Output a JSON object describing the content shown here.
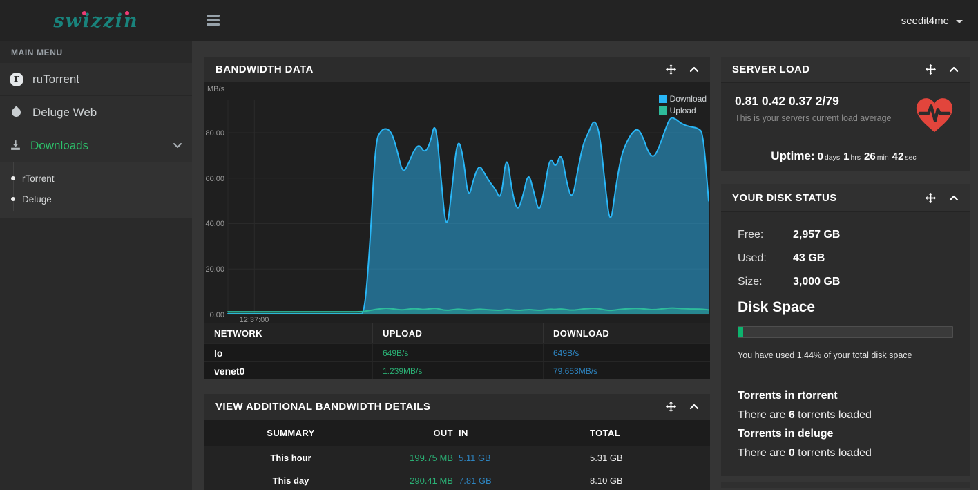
{
  "topbar": {
    "logo": "swizzin",
    "user": "seedit4me"
  },
  "sidebar": {
    "section_label": "MAIN MENU",
    "items": [
      {
        "label": "ruTorrent",
        "icon": "rutorrent-icon"
      },
      {
        "label": "Deluge Web",
        "icon": "water-drop-icon"
      },
      {
        "label": "Downloads",
        "icon": "download-tray-icon",
        "expanded": true
      }
    ],
    "submenu": [
      {
        "label": "rTorrent"
      },
      {
        "label": "Deluge"
      }
    ]
  },
  "panels": {
    "bandwidth": {
      "title": "BANDWIDTH DATA",
      "network_table": {
        "headers": [
          "NETWORK",
          "UPLOAD",
          "DOWNLOAD"
        ],
        "rows": [
          {
            "network": "lo",
            "upload": "649B/s",
            "download": "649B/s"
          },
          {
            "network": "venet0",
            "upload": "1.239MB/s",
            "download": "79.653MB/s"
          }
        ]
      }
    },
    "details": {
      "title": "VIEW ADDITIONAL BANDWIDTH DETAILS",
      "headers": [
        "SUMMARY",
        "OUT",
        "IN",
        "TOTAL"
      ],
      "rows": [
        {
          "summary": "This hour",
          "out": "199.75 MB",
          "in": "5.11 GB",
          "total": "5.31 GB"
        },
        {
          "summary": "This day",
          "out": "290.41 MB",
          "in": "7.81 GB",
          "total": "8.10 GB"
        }
      ]
    },
    "server_load": {
      "title": "SERVER LOAD",
      "load": "0.81 0.42 0.37 2/79",
      "description": "This is your servers current load average",
      "uptime_label": "Uptime:",
      "uptime": [
        {
          "value": "0",
          "unit": "days"
        },
        {
          "value": "1",
          "unit": "hrs"
        },
        {
          "value": "26",
          "unit": "min"
        },
        {
          "value": "42",
          "unit": "sec"
        }
      ]
    },
    "disk": {
      "title": "YOUR DISK STATUS",
      "stats": [
        {
          "label": "Free:",
          "value": "2,957 GB"
        },
        {
          "label": "Used:",
          "value": "43 GB"
        },
        {
          "label": "Size:",
          "value": "3,000 GB"
        }
      ],
      "bar_heading": "Disk Space",
      "used_percent": 1.44,
      "usage_note": "You have used 1.44% of your total disk space",
      "torrents": [
        {
          "heading": "Torrents in rtorrent",
          "text_before": "There are ",
          "count": "6",
          "text_after": " torrents loaded"
        },
        {
          "heading": "Torrents in deluge",
          "text_before": "There are ",
          "count": "0",
          "text_after": " torrents loaded"
        }
      ]
    }
  },
  "chart_data": {
    "type": "area",
    "title": "Bandwidth Data",
    "ylabel": "MB/s",
    "xlabel": "",
    "y_ticks": [
      "0.00",
      "20.00",
      "40.00",
      "60.00",
      "80.00"
    ],
    "y_tick_values": [
      0,
      20,
      40,
      60,
      80
    ],
    "ylim": [
      0,
      93
    ],
    "x_tick_label": "12:37:00",
    "x_tick_fraction": 0.055,
    "grid": true,
    "legend_position": "top-right",
    "series": [
      {
        "name": "Download",
        "color": "#29b6f6",
        "fill": "rgba(41,182,246,0.5)",
        "values": [
          0.3,
          0.3,
          0.3,
          0.3,
          0.3,
          0.3,
          0.3,
          0.3,
          0.3,
          0.3,
          0.3,
          0.3,
          0.3,
          0.3,
          0.3,
          0.3,
          0.3,
          0.3,
          0.3,
          0.3,
          0.3,
          0.3,
          0.3,
          0.3,
          0.3,
          0.5,
          30,
          76,
          81,
          82,
          80,
          72,
          62,
          66,
          72,
          75,
          71,
          75,
          86,
          60,
          35,
          55,
          78,
          71,
          50,
          60,
          66,
          62,
          58,
          55,
          50,
          72,
          54,
          45,
          52,
          63,
          54,
          44,
          56,
          70,
          64,
          72,
          58,
          50,
          63,
          75,
          80,
          86,
          81,
          58,
          38,
          56,
          70,
          76,
          80,
          82,
          78,
          71,
          69,
          74,
          81,
          87,
          86,
          84,
          83,
          82.5,
          82,
          80,
          50
        ]
      },
      {
        "name": "Upload",
        "color": "#2ebc9b",
        "fill": "rgba(46,188,155,0.35)",
        "values": [
          1.2,
          1.2,
          1.2,
          1.2,
          1.2,
          1.2,
          1.2,
          1.2,
          1.2,
          1.2,
          1.2,
          1.2,
          1.2,
          1.2,
          1.2,
          1.2,
          1.2,
          1.2,
          1.2,
          1.2,
          1.2,
          1.2,
          1.2,
          1.2,
          1.2,
          1.3,
          1.8,
          2.2,
          2.5,
          2.8,
          2.5,
          2.2,
          2.0,
          2.3,
          2.6,
          2.4,
          2.2,
          2.5,
          2.8,
          2.2,
          1.8,
          2.0,
          2.4,
          2.2,
          1.9,
          2.1,
          2.4,
          2.2,
          2.0,
          1.9,
          1.8,
          2.3,
          2.0,
          1.8,
          1.9,
          2.2,
          2.0,
          1.8,
          2.0,
          2.4,
          2.2,
          2.5,
          2.1,
          1.9,
          2.1,
          2.4,
          2.6,
          2.8,
          2.5,
          2.0,
          1.7,
          2.0,
          2.3,
          2.5,
          2.6,
          2.7,
          2.5,
          2.2,
          2.1,
          2.3,
          2.6,
          2.9,
          2.8,
          2.6,
          2.5,
          2.4,
          2.4,
          2.3,
          2.0
        ]
      }
    ]
  },
  "colors": {
    "accent_green": "#2dc26b",
    "download_blue": "#29b6f6",
    "upload_green": "#2ebc9b",
    "value_green": "#2aaf74",
    "value_blue": "#2d84c0",
    "heart_red": "#e2453c",
    "disk_fill_green": "#0db36e",
    "logo_teal": "#19837c",
    "logo_pink": "#ed3b74"
  },
  "icons": {
    "menu": "hamburger",
    "user_caret": "caret-down",
    "panel_move": "arrows-move",
    "panel_collapse": "chevron-up",
    "server_load": "heartbeat-heart"
  }
}
